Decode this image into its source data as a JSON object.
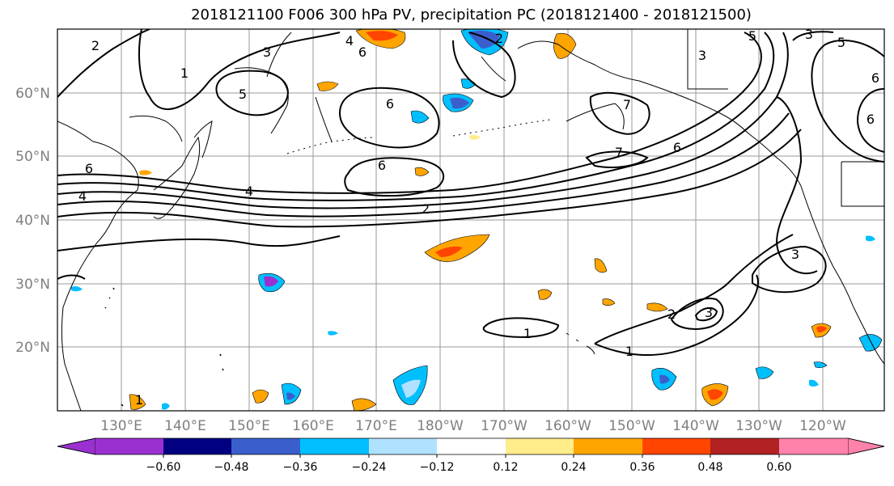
{
  "title": "2018121100 F006 300 hPa PV, precipitation PC (2018121400 - 2018121500)",
  "map": {
    "lon_ticks": [
      "130°E",
      "140°E",
      "150°E",
      "160°E",
      "170°E",
      "180°W",
      "170°W",
      "160°W",
      "150°W",
      "140°W",
      "130°W",
      "120°W"
    ],
    "lat_ticks": [
      "20°N",
      "30°N",
      "40°N",
      "50°N",
      "60°N"
    ],
    "contour_labels": [
      "2",
      "1",
      "3",
      "4",
      "6",
      "2",
      "5",
      "6",
      "4",
      "6",
      "4",
      "6",
      "5",
      "3",
      "5",
      "6",
      "7",
      "7",
      "6",
      "2",
      "3",
      "6",
      "3",
      "2",
      "3",
      "1",
      "1",
      "1"
    ],
    "land_color": "#000000",
    "grid_color": "#999999"
  },
  "colorbar": {
    "ticks": [
      "−0.60",
      "−0.48",
      "−0.36",
      "−0.24",
      "−0.12",
      "0.12",
      "0.24",
      "0.36",
      "0.48",
      "0.60"
    ],
    "colors": [
      "#9b30d0",
      "#000080",
      "#3a5fcd",
      "#00bfff",
      "#b0e2ff",
      "#ffffff",
      "#ffec8b",
      "#ffa500",
      "#ff4500",
      "#b22222",
      "#ff82ab"
    ]
  }
}
